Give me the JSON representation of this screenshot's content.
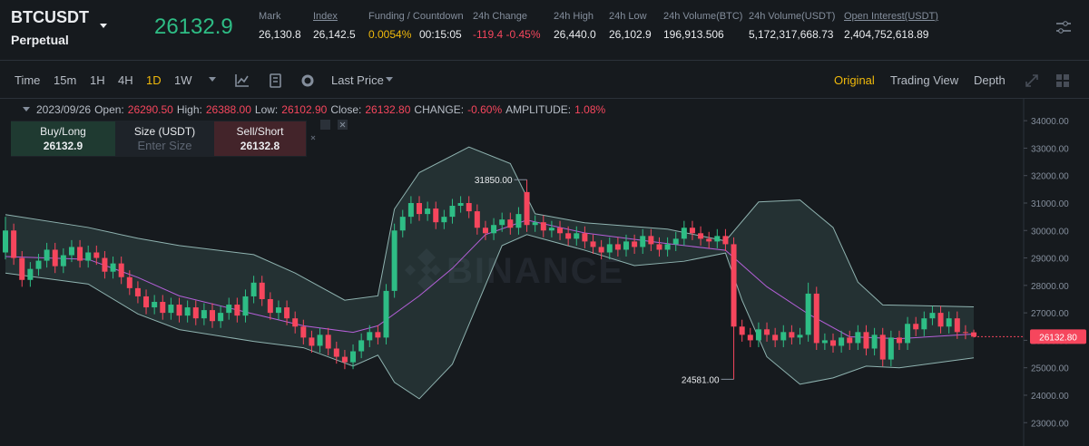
{
  "header": {
    "symbol": "BTCUSDT",
    "contract": "Perpetual",
    "last_price": "26132.9",
    "stats": [
      {
        "label": "Mark",
        "value": "26,130.8"
      },
      {
        "label": "Index",
        "value": "26,142.5"
      },
      {
        "label": "Funding / Countdown",
        "value": "0.0054%",
        "value2": "00:15:05"
      },
      {
        "label": "24h Change",
        "value": "-119.4 -0.45%"
      },
      {
        "label": "24h High",
        "value": "26,440.0"
      },
      {
        "label": "24h Low",
        "value": "26,102.9"
      },
      {
        "label": "24h Volume(BTC)",
        "value": "196,913.506"
      },
      {
        "label": "24h Volume(USDT)",
        "value": "5,172,317,668.73"
      },
      {
        "label": "Open Interest(USDT)",
        "value": "2,404,752,618.89"
      }
    ]
  },
  "toolbar": {
    "intervals": [
      "Time",
      "15m",
      "1H",
      "4H",
      "1D",
      "1W"
    ],
    "price_type": "Last Price",
    "views": [
      "Original",
      "Trading View",
      "Depth"
    ]
  },
  "ohlc_bar": {
    "date": "2023/09/26",
    "items": [
      {
        "label": "Open:",
        "value": "26290.50"
      },
      {
        "label": "High:",
        "value": "26388.00"
      },
      {
        "label": "Low:",
        "value": "26102.90"
      },
      {
        "label": "Close:",
        "value": "26132.80"
      },
      {
        "label": "CHANGE:",
        "value": "-0.60%"
      },
      {
        "label": "AMPLITUDE:",
        "value": "1.08%"
      }
    ]
  },
  "order_panel": {
    "buy_label": "Buy/Long",
    "buy_price": "26132.9",
    "size_label": "Size (USDT)",
    "size_placeholder": "Enter Size",
    "sell_label": "Sell/Short",
    "sell_price": "26132.8"
  },
  "chart_data": {
    "type": "candlestick",
    "up_color": "#2ebd85",
    "down_color": "#f6465d",
    "watermark": "BINANCE",
    "open": [
      29200,
      30000,
      29000,
      28200,
      28600,
      28900,
      29300,
      28700,
      29100,
      29400,
      28900,
      29200,
      29000,
      28500,
      28800,
      28300,
      27900,
      27600,
      27200,
      27400,
      27000,
      27300,
      26900,
      27200,
      26800,
      27100,
      26700,
      27000,
      27300,
      26900,
      27600,
      28100,
      27500,
      27000,
      27200,
      26800,
      26500,
      26100,
      25800,
      26200,
      25700,
      25400,
      25200,
      25600,
      26000,
      26300,
      26100,
      27800,
      30000,
      30500,
      31000,
      30600,
      30800,
      30300,
      30500,
      30900,
      31000,
      30700,
      30100,
      29900,
      30200,
      30400,
      30100,
      31400,
      30200,
      30300,
      30000,
      30100,
      29900,
      29700,
      29900,
      29600,
      29400,
      29200,
      29500,
      29300,
      29600,
      29400,
      29800,
      29500,
      29300,
      29500,
      29700,
      30100,
      29900,
      29700,
      29600,
      29800,
      29500,
      26500,
      26200,
      26000,
      26400,
      26200,
      26000,
      26300,
      26100,
      26200,
      27700,
      25900,
      26000,
      25800,
      26100,
      25900,
      26300,
      25700,
      26200,
      25300,
      26100,
      25900,
      26600,
      26400,
      26800,
      27000,
      26500,
      26800,
      26300,
      26290.5
    ],
    "high": [
      30500,
      30250,
      29250,
      28850,
      29150,
      29550,
      29550,
      29350,
      29650,
      29650,
      29450,
      29450,
      29250,
      29050,
      29050,
      28550,
      28150,
      27850,
      27650,
      27650,
      27550,
      27550,
      27450,
      27450,
      27350,
      27350,
      27250,
      27550,
      27550,
      27850,
      28350,
      28350,
      27750,
      27450,
      27450,
      27050,
      26750,
      26350,
      26450,
      26450,
      25950,
      25650,
      25850,
      26250,
      26550,
      26550,
      28050,
      30250,
      30750,
      31250,
      31250,
      31050,
      31050,
      30750,
      31150,
      31250,
      31250,
      30950,
      30350,
      30450,
      30650,
      30650,
      30850,
      31850,
      30550,
      30550,
      30350,
      30350,
      30150,
      30150,
      30150,
      29850,
      29650,
      29750,
      29750,
      29850,
      29850,
      30050,
      30050,
      29750,
      29750,
      29950,
      30350,
      30350,
      30150,
      29950,
      30050,
      30050,
      29750,
      26750,
      26450,
      26650,
      26650,
      26450,
      26550,
      26550,
      26450,
      28100,
      27950,
      26250,
      26250,
      26350,
      26350,
      26550,
      26550,
      26450,
      26450,
      26350,
      26350,
      26850,
      26850,
      27050,
      27250,
      27250,
      27050,
      27050,
      26550,
      26388
    ],
    "low": [
      28950,
      28750,
      27950,
      27950,
      28350,
      28650,
      28450,
      28450,
      28850,
      28650,
      28650,
      28750,
      28250,
      28250,
      28050,
      27650,
      27350,
      26950,
      26950,
      26750,
      26750,
      26650,
      26650,
      26550,
      26550,
      26450,
      26450,
      26750,
      26650,
      26650,
      27350,
      27250,
      26750,
      26750,
      26550,
      26250,
      25850,
      25550,
      25550,
      25450,
      25150,
      24950,
      24950,
      25350,
      25750,
      25850,
      25850,
      27550,
      29750,
      30250,
      30350,
      30350,
      30050,
      30050,
      30250,
      30650,
      30450,
      29850,
      29650,
      29650,
      29950,
      29850,
      29850,
      29950,
      29950,
      29750,
      29750,
      29650,
      29450,
      29450,
      29350,
      29150,
      28950,
      28950,
      29050,
      29050,
      29150,
      29150,
      29250,
      29050,
      29050,
      29250,
      29450,
      29650,
      29450,
      29350,
      29350,
      29250,
      24581,
      25950,
      25750,
      25750,
      25950,
      25750,
      25750,
      25850,
      25850,
      25950,
      25650,
      25650,
      25550,
      25550,
      25650,
      25650,
      25450,
      25450,
      25050,
      25050,
      25650,
      25650,
      26150,
      26150,
      26550,
      26250,
      26250,
      26050,
      26040,
      26102.9
    ],
    "close": [
      30000,
      29000,
      28200,
      28600,
      28900,
      29300,
      28700,
      29100,
      29400,
      28900,
      29200,
      29000,
      28500,
      28800,
      28300,
      27900,
      27600,
      27200,
      27400,
      27000,
      27300,
      26900,
      27200,
      26800,
      27100,
      26700,
      27000,
      27300,
      26900,
      27600,
      28100,
      27500,
      27000,
      27200,
      26800,
      26500,
      26100,
      25800,
      26200,
      25700,
      25400,
      25200,
      25600,
      26000,
      26300,
      26100,
      27800,
      30000,
      30500,
      31000,
      30600,
      30800,
      30300,
      30500,
      30900,
      31000,
      30700,
      30100,
      29900,
      30200,
      30400,
      30100,
      30600,
      30200,
      30300,
      30000,
      30100,
      29900,
      29700,
      29900,
      29600,
      29400,
      29200,
      29500,
      29300,
      29600,
      29400,
      29800,
      29500,
      29300,
      29500,
      29700,
      30100,
      29900,
      29700,
      29600,
      29800,
      29500,
      26500,
      26200,
      26000,
      26400,
      26200,
      26000,
      26300,
      26100,
      26200,
      27700,
      25900,
      26000,
      25800,
      26100,
      25900,
      26300,
      25700,
      26200,
      25300,
      26100,
      25900,
      26600,
      26400,
      26800,
      27000,
      26500,
      26800,
      26300,
      26290.5,
      26132.8
    ],
    "bands": [
      {
        "color": "#8fb3b0",
        "x": [
          0,
          10,
          16,
          21,
          30,
          35,
          41,
          45,
          47,
          50,
          56,
          61,
          64,
          70,
          80,
          87,
          91,
          96,
          100,
          103,
          106,
          117
        ],
        "values": [
          30580,
          30110,
          29715,
          29450,
          29120,
          28450,
          27460,
          27620,
          30780,
          32110,
          33040,
          32440,
          30610,
          30280,
          30050,
          29620,
          31040,
          31110,
          30110,
          28120,
          27290,
          27220
        ]
      },
      {
        "color": "#b45fd8",
        "x": [
          0,
          10,
          16,
          21,
          30,
          36,
          42,
          45,
          50,
          54,
          58,
          63,
          70,
          80,
          87,
          92,
          97,
          102,
          108,
          117
        ],
        "values": [
          29050,
          28950,
          28290,
          27620,
          26960,
          26530,
          26290,
          26530,
          27620,
          28620,
          29850,
          30380,
          29910,
          29520,
          29280,
          27950,
          26960,
          26130,
          26060,
          26230
        ]
      },
      {
        "color": "#8fb3b0",
        "x": [
          0,
          10,
          16,
          21,
          30,
          36,
          42,
          45,
          47,
          50,
          54,
          57,
          60,
          63,
          70,
          76,
          82,
          87,
          89,
          92,
          96,
          100,
          104,
          108,
          117
        ],
        "values": [
          28450,
          28050,
          26960,
          26390,
          25960,
          25730,
          25060,
          25460,
          24470,
          23870,
          25130,
          27290,
          29450,
          29850,
          29280,
          28720,
          28880,
          29180,
          27460,
          25400,
          24400,
          24630,
          25060,
          25000,
          25360
        ]
      }
    ],
    "annotations": [
      {
        "x": 63,
        "value": 31850,
        "label": "31850.00"
      },
      {
        "x": 88,
        "value": 24581,
        "label": "24581.00"
      }
    ],
    "last_price": {
      "value": 26132.8,
      "label": "26132.80"
    },
    "ylim": [
      22150,
      34830
    ],
    "yticks": [
      {
        "value": 34000,
        "label": "34000.00"
      },
      {
        "value": 33000,
        "label": "33000.00"
      },
      {
        "value": 32000,
        "label": "32000.00"
      },
      {
        "value": 31000,
        "label": "31000.00"
      },
      {
        "value": 30000,
        "label": "30000.00"
      },
      {
        "value": 29000,
        "label": "29000.00"
      },
      {
        "value": 28000,
        "label": "28000.00"
      },
      {
        "value": 27000,
        "label": "27000.00"
      },
      {
        "value": 26000,
        "label": "26000.00"
      },
      {
        "value": 25000,
        "label": "25000.00"
      },
      {
        "value": 24000,
        "label": "24000.00"
      },
      {
        "value": 23000,
        "label": "23000.00"
      }
    ]
  }
}
